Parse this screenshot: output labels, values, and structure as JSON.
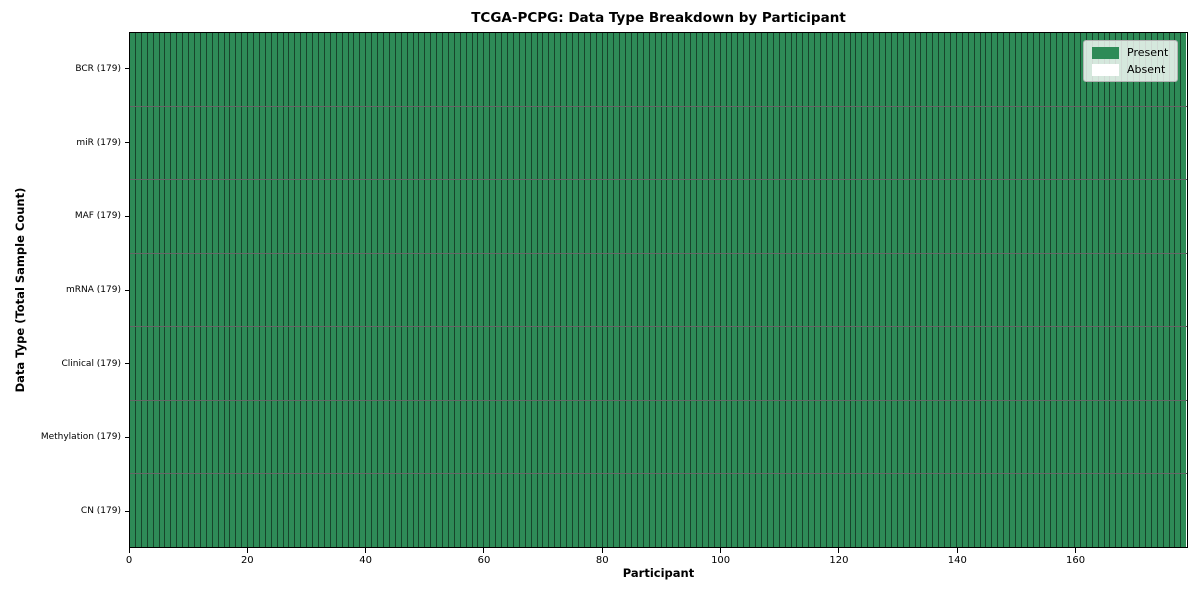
{
  "chart_data": {
    "type": "heatmap",
    "title": "TCGA-PCPG: Data Type Breakdown by Participant",
    "xlabel": "Participant",
    "ylabel": "Data Type (Total Sample Count)",
    "n_participants": 179,
    "x_axis": {
      "min": 0,
      "max": 179,
      "ticks": [
        0,
        20,
        40,
        60,
        80,
        100,
        120,
        140,
        160
      ]
    },
    "rows": [
      {
        "name": "BCR",
        "label": "BCR (179)",
        "total_samples": 179,
        "present_count": 179,
        "absent_count": 0
      },
      {
        "name": "miR",
        "label": "miR (179)",
        "total_samples": 179,
        "present_count": 179,
        "absent_count": 0
      },
      {
        "name": "MAF",
        "label": "MAF (179)",
        "total_samples": 179,
        "present_count": 179,
        "absent_count": 0
      },
      {
        "name": "mRNA",
        "label": "mRNA (179)",
        "total_samples": 179,
        "present_count": 179,
        "absent_count": 0
      },
      {
        "name": "Clinical",
        "label": "Clinical (179)",
        "total_samples": 179,
        "present_count": 179,
        "absent_count": 0
      },
      {
        "name": "Methylation",
        "label": "Methylation (179)",
        "total_samples": 179,
        "present_count": 179,
        "absent_count": 0
      },
      {
        "name": "CN",
        "label": "CN (179)",
        "total_samples": 179,
        "present_count": 179,
        "absent_count": 0
      }
    ],
    "legend": {
      "position": "upper right",
      "entries": [
        {
          "label": "Present",
          "color": "#2e8b57"
        },
        {
          "label": "Absent",
          "color": "#ffffff"
        }
      ]
    },
    "colors": {
      "present": "#2e8b57",
      "absent": "#ffffff",
      "cell_edge": "rgba(0,0,0,0.5)",
      "row_separator": "rgba(0,0,0,0.6)",
      "spine": "#000000",
      "text": "#000000",
      "figure_background": "#ffffff",
      "legend_background": "rgba(255,255,255,0.8)",
      "legend_border": "#b3b3b3"
    },
    "layout_hints": {
      "grid": "per-cell borders",
      "legend_location": "inside top-right"
    }
  }
}
